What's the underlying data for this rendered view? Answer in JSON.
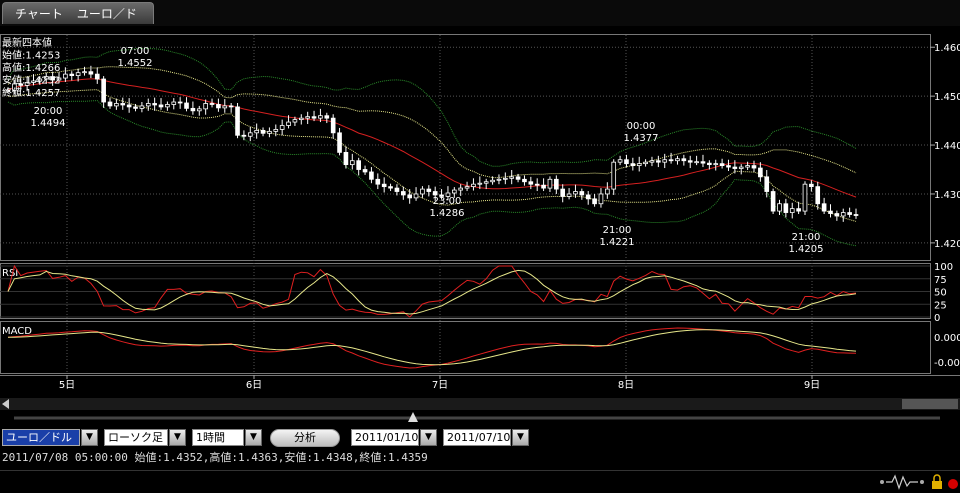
{
  "tab": {
    "title": "チャート",
    "pair": "ユーロ／ドル"
  },
  "chart_data": {
    "type": "candlestick",
    "title": "",
    "info_box": [
      {
        "label": "最新四本値"
      },
      {
        "label": "始値:1.4253"
      },
      {
        "label": "高値:1.4266"
      },
      {
        "label": "安値:1.4252"
      },
      {
        "label": "終値:1.4257"
      }
    ],
    "price_axis": {
      "ticks": [
        1.46,
        1.45,
        1.44,
        1.43,
        1.42
      ],
      "range": [
        1.4165,
        1.4625
      ]
    },
    "day_labels": [
      "5日",
      "6日",
      "7日",
      "8日",
      "9日"
    ],
    "annotations": [
      {
        "time": "07:00",
        "price": "1.4552"
      },
      {
        "time": "20:00",
        "price": "1.4494"
      },
      {
        "time": "23:00",
        "price": "1.4286"
      },
      {
        "time": "00:00",
        "price": "1.4377"
      },
      {
        "time": "21:00",
        "price": "1.4221"
      },
      {
        "time": "21:00",
        "price": "1.4205"
      }
    ],
    "rsi": {
      "label": "RSI",
      "ticks": [
        100,
        75,
        50,
        25,
        0
      ]
    },
    "macd": {
      "label": "MACD",
      "ticks": [
        "0.000",
        "-0.00"
      ]
    },
    "series_closes": [
      1.4512,
      1.4525,
      1.4522,
      1.4528,
      1.4531,
      1.4535,
      1.454,
      1.4533,
      1.4537,
      1.4545,
      1.4542,
      1.4548,
      1.455,
      1.4545,
      1.4535,
      1.4488,
      1.448,
      1.4485,
      1.4482,
      1.4478,
      1.4475,
      1.448,
      1.4485,
      1.4482,
      1.4478,
      1.4483,
      1.4488,
      1.4486,
      1.4475,
      1.447,
      1.4474,
      1.4485,
      1.4483,
      1.4476,
      1.448,
      1.4478,
      1.442,
      1.4418,
      1.4425,
      1.443,
      1.4424,
      1.4428,
      1.4432,
      1.444,
      1.4447,
      1.4452,
      1.4455,
      1.4458,
      1.4455,
      1.446,
      1.4455,
      1.4425,
      1.4385,
      1.436,
      1.4368,
      1.435,
      1.4345,
      1.433,
      1.432,
      1.4315,
      1.4312,
      1.4305,
      1.4298,
      1.4292,
      1.43,
      1.431,
      1.4305,
      1.4298,
      1.4295,
      1.4302,
      1.4308,
      1.4312,
      1.4315,
      1.432,
      1.4322,
      1.4325,
      1.4328,
      1.433,
      1.4332,
      1.4335,
      1.433,
      1.4325,
      1.432,
      1.4318,
      1.4312,
      1.433,
      1.431,
      1.4295,
      1.43,
      1.4305,
      1.4298,
      1.429,
      1.428,
      1.43,
      1.431,
      1.4365,
      1.437,
      1.4362,
      1.4358,
      1.4362,
      1.4365,
      1.4368,
      1.4365,
      1.437,
      1.4368,
      1.4372,
      1.4368,
      1.4365,
      1.4366,
      1.4363,
      1.436,
      1.4362,
      1.4358,
      1.4355,
      1.4352,
      1.4355,
      1.4358,
      1.4353,
      1.4335,
      1.4305,
      1.4265,
      1.428,
      1.4262,
      1.427,
      1.4265,
      1.432,
      1.4315,
      1.428,
      1.4265,
      1.426,
      1.4255,
      1.4262,
      1.4258,
      1.4257
    ]
  },
  "toolbar": {
    "pair_select": "ユーロ／ドル",
    "chart_type_select": "ローソク足",
    "interval_select": "1時間",
    "analysis_button": "分析",
    "start_date": "2011/01/10",
    "end_date": "2011/07/10"
  },
  "status_text": "2011/07/08 05:00:00 始値:1.4352,高値:1.4363,安値:1.4348,終値:1.4359",
  "colors": {
    "up": "#ffffff",
    "down": "#ffffff",
    "ma_red": "#d42020",
    "band_green": "#2a8a2a",
    "band_yellow": "#e6e68a",
    "rsi_red": "#e02020",
    "rsi_yellow": "#e6e68a"
  }
}
